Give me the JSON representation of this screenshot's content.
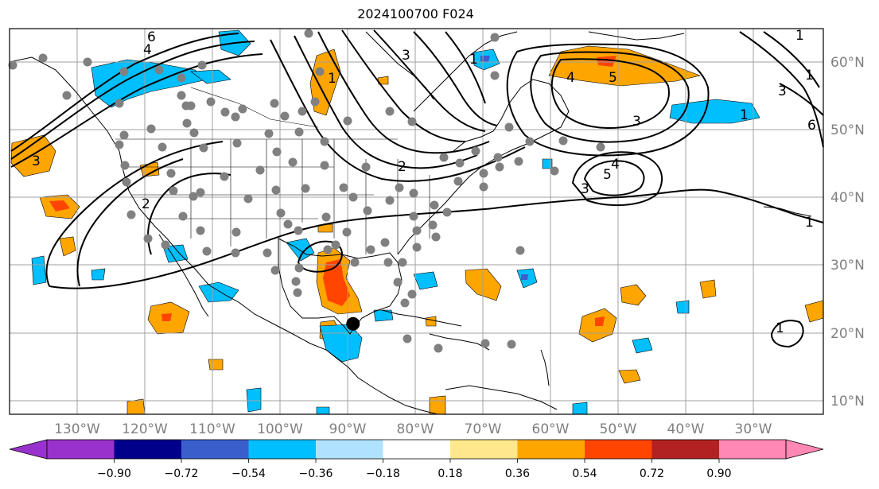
{
  "title": "2024100700 F024",
  "lon_labels": [
    "130°W",
    "120°W",
    "110°W",
    "100°W",
    "90°W",
    "80°W",
    "70°W",
    "60°W",
    "50°W",
    "40°W",
    "30°W"
  ],
  "lat_labels": [
    "60°N",
    "50°N",
    "40°N",
    "30°N",
    "20°N",
    "10°N"
  ],
  "colorbar": {
    "ticks": [
      "−0.90",
      "−0.72",
      "−0.54",
      "−0.36",
      "−0.18",
      "0.18",
      "0.36",
      "0.54",
      "0.72",
      "0.90"
    ],
    "colors": [
      "#9932cc",
      "#00008b",
      "#3a5fcd",
      "#00bfff",
      "#b0e2ff",
      "#ffffff",
      "#ffe88c",
      "#ffa500",
      "#ff4500",
      "#b22222",
      "#ff88b4"
    ]
  },
  "contour_labels": [
    "6",
    "4",
    "3",
    "1",
    "4",
    "5",
    "1",
    "3",
    "2",
    "1",
    "5",
    "4",
    "3",
    "3",
    "1",
    "6",
    "1",
    "1",
    "2",
    "3",
    "1"
  ],
  "marker": {
    "lon": -89.2,
    "lat": 21.4,
    "color": "#000000"
  }
}
